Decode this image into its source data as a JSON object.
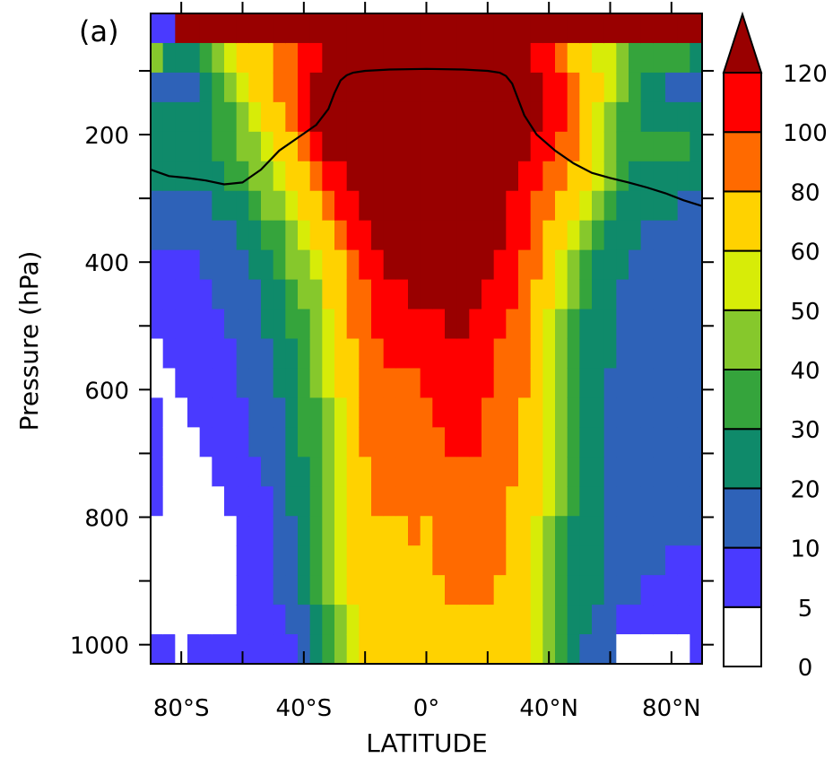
{
  "chart_data": {
    "type": "heatmap",
    "panel_label": "(a)",
    "xlabel": "LATITUDE",
    "ylabel": "Pressure (hPa)",
    "xlim": [
      -90,
      90
    ],
    "ylim": [
      1030,
      10
    ],
    "x_ticks": [
      {
        "value": -80,
        "label": "80°S"
      },
      {
        "value": -40,
        "label": "40°S"
      },
      {
        "value": 0,
        "label": "0°"
      },
      {
        "value": 40,
        "label": "40°N"
      },
      {
        "value": 80,
        "label": "80°N"
      }
    ],
    "x_minor_ticks": [
      -60,
      -20,
      20,
      60
    ],
    "y_ticks": [
      {
        "value": 200,
        "label": "200"
      },
      {
        "value": 400,
        "label": "400"
      },
      {
        "value": 600,
        "label": "600"
      },
      {
        "value": 800,
        "label": "800"
      },
      {
        "value": 1000,
        "label": "1000"
      }
    ],
    "y_minor_ticks": [
      100,
      300,
      500,
      700,
      900
    ],
    "colorbar": {
      "levels": [
        0,
        5,
        10,
        20,
        30,
        40,
        50,
        60,
        80,
        100,
        120
      ],
      "labels": [
        "0",
        "5",
        "10",
        "20",
        "30",
        "40",
        "50",
        "60",
        "80",
        "100",
        "120"
      ],
      "colors": [
        "#ffffff",
        "#4a3aff",
        "#2e62b8",
        "#0f8a6a",
        "#35a43c",
        "#86c82c",
        "#d7ec08",
        "#ffd200",
        "#ff6a00",
        "#ff0000",
        "#990000"
      ],
      "extend": "max"
    },
    "columns": [
      {
        "lat": -88,
        "p": [
          5,
          40,
          10,
          20,
          20,
          20,
          10,
          10,
          5,
          5,
          5,
          0,
          0,
          5,
          5,
          5,
          5,
          0,
          0,
          0,
          0,
          5
        ]
      },
      {
        "lat": -84,
        "p": [
          5,
          20,
          10,
          20,
          20,
          20,
          10,
          10,
          5,
          5,
          5,
          5,
          0,
          0,
          0,
          0,
          0,
          0,
          0,
          0,
          0,
          5
        ]
      },
      {
        "lat": -80,
        "p": [
          120,
          20,
          10,
          20,
          20,
          20,
          10,
          10,
          5,
          5,
          5,
          5,
          5,
          0,
          0,
          0,
          0,
          0,
          0,
          0,
          0,
          0
        ]
      },
      {
        "lat": -76,
        "p": [
          120,
          20,
          10,
          20,
          20,
          20,
          10,
          10,
          5,
          5,
          5,
          5,
          5,
          5,
          0,
          0,
          0,
          0,
          0,
          0,
          0,
          5
        ]
      },
      {
        "lat": -72,
        "p": [
          120,
          30,
          20,
          20,
          20,
          20,
          10,
          10,
          10,
          5,
          5,
          5,
          5,
          5,
          5,
          0,
          0,
          0,
          0,
          0,
          0,
          5
        ]
      },
      {
        "lat": -68,
        "p": [
          120,
          40,
          30,
          30,
          30,
          20,
          20,
          10,
          10,
          10,
          5,
          5,
          5,
          5,
          5,
          5,
          0,
          0,
          0,
          0,
          0,
          5
        ]
      },
      {
        "lat": -64,
        "p": [
          120,
          50,
          40,
          30,
          30,
          30,
          20,
          10,
          10,
          10,
          10,
          5,
          5,
          5,
          5,
          5,
          5,
          0,
          0,
          0,
          0,
          5
        ]
      },
      {
        "lat": -60,
        "p": [
          120,
          60,
          50,
          40,
          40,
          30,
          20,
          20,
          10,
          10,
          10,
          10,
          10,
          5,
          5,
          5,
          5,
          5,
          5,
          5,
          5,
          5
        ]
      },
      {
        "lat": -56,
        "p": [
          120,
          60,
          60,
          50,
          40,
          40,
          30,
          20,
          20,
          10,
          10,
          10,
          10,
          10,
          10,
          5,
          5,
          5,
          5,
          5,
          5,
          5
        ]
      },
      {
        "lat": -52,
        "p": [
          120,
          60,
          60,
          60,
          50,
          40,
          40,
          30,
          20,
          20,
          20,
          10,
          10,
          10,
          10,
          10,
          5,
          5,
          5,
          5,
          5,
          5
        ]
      },
      {
        "lat": -48,
        "p": [
          120,
          80,
          80,
          60,
          60,
          50,
          40,
          30,
          30,
          20,
          20,
          20,
          20,
          10,
          10,
          10,
          10,
          10,
          10,
          10,
          5,
          5
        ]
      },
      {
        "lat": -44,
        "p": [
          120,
          80,
          80,
          80,
          60,
          60,
          50,
          40,
          40,
          30,
          30,
          20,
          20,
          20,
          20,
          20,
          20,
          10,
          10,
          10,
          10,
          5
        ]
      },
      {
        "lat": -40,
        "p": [
          120,
          100,
          100,
          100,
          80,
          60,
          60,
          50,
          40,
          40,
          30,
          30,
          30,
          30,
          30,
          20,
          20,
          20,
          20,
          20,
          10,
          10
        ]
      },
      {
        "lat": -36,
        "p": [
          120,
          100,
          120,
          120,
          100,
          80,
          60,
          60,
          50,
          40,
          40,
          40,
          40,
          30,
          30,
          30,
          30,
          30,
          30,
          30,
          20,
          20
        ]
      },
      {
        "lat": -32,
        "p": [
          120,
          120,
          120,
          120,
          120,
          100,
          80,
          60,
          60,
          60,
          50,
          50,
          50,
          40,
          40,
          40,
          40,
          40,
          40,
          40,
          30,
          30
        ]
      },
      {
        "lat": -28,
        "p": [
          120,
          120,
          120,
          120,
          120,
          100,
          100,
          80,
          60,
          60,
          60,
          60,
          60,
          50,
          50,
          50,
          50,
          50,
          50,
          50,
          40,
          40
        ]
      },
      {
        "lat": -24,
        "p": [
          120,
          120,
          120,
          120,
          120,
          120,
          100,
          100,
          80,
          80,
          80,
          60,
          60,
          60,
          60,
          60,
          60,
          60,
          60,
          60,
          50,
          50
        ]
      },
      {
        "lat": -20,
        "p": [
          120,
          120,
          120,
          120,
          120,
          120,
          120,
          100,
          100,
          80,
          80,
          80,
          80,
          80,
          80,
          60,
          60,
          60,
          60,
          60,
          60,
          60
        ]
      },
      {
        "lat": -16,
        "p": [
          120,
          120,
          120,
          120,
          120,
          120,
          120,
          120,
          100,
          100,
          100,
          80,
          80,
          80,
          80,
          80,
          80,
          60,
          60,
          60,
          60,
          60
        ]
      },
      {
        "lat": -12,
        "p": [
          120,
          120,
          120,
          120,
          120,
          120,
          120,
          120,
          120,
          100,
          100,
          100,
          80,
          80,
          80,
          80,
          80,
          60,
          60,
          60,
          60,
          60
        ]
      },
      {
        "lat": -8,
        "p": [
          120,
          120,
          120,
          120,
          120,
          120,
          120,
          120,
          120,
          100,
          100,
          100,
          80,
          80,
          80,
          80,
          80,
          60,
          60,
          60,
          60,
          60
        ]
      },
      {
        "lat": -4,
        "p": [
          120,
          120,
          120,
          120,
          120,
          120,
          120,
          120,
          120,
          120,
          100,
          100,
          80,
          80,
          80,
          80,
          80,
          80,
          60,
          60,
          60,
          60
        ]
      },
      {
        "lat": 0,
        "p": [
          120,
          120,
          120,
          120,
          120,
          120,
          120,
          120,
          120,
          120,
          100,
          100,
          100,
          80,
          80,
          80,
          80,
          60,
          60,
          60,
          60,
          60
        ]
      },
      {
        "lat": 4,
        "p": [
          120,
          120,
          120,
          120,
          120,
          120,
          120,
          120,
          120,
          120,
          100,
          100,
          100,
          100,
          80,
          80,
          80,
          80,
          80,
          60,
          60,
          60
        ]
      },
      {
        "lat": 8,
        "p": [
          120,
          120,
          120,
          120,
          120,
          120,
          120,
          120,
          120,
          120,
          120,
          100,
          100,
          100,
          100,
          80,
          80,
          80,
          80,
          80,
          60,
          60
        ]
      },
      {
        "lat": 12,
        "p": [
          120,
          120,
          120,
          120,
          120,
          120,
          120,
          120,
          120,
          120,
          120,
          100,
          100,
          100,
          100,
          80,
          80,
          80,
          80,
          80,
          60,
          60
        ]
      },
      {
        "lat": 16,
        "p": [
          120,
          120,
          120,
          120,
          120,
          120,
          120,
          120,
          120,
          120,
          100,
          100,
          100,
          100,
          100,
          80,
          80,
          80,
          80,
          80,
          60,
          60
        ]
      },
      {
        "lat": 20,
        "p": [
          120,
          120,
          120,
          120,
          120,
          120,
          120,
          120,
          120,
          100,
          100,
          100,
          100,
          80,
          80,
          80,
          80,
          80,
          80,
          80,
          60,
          60
        ]
      },
      {
        "lat": 24,
        "p": [
          120,
          120,
          120,
          120,
          120,
          120,
          120,
          120,
          100,
          100,
          100,
          80,
          80,
          80,
          80,
          80,
          80,
          80,
          80,
          60,
          60,
          60
        ]
      },
      {
        "lat": 28,
        "p": [
          120,
          120,
          120,
          120,
          120,
          120,
          100,
          100,
          100,
          100,
          80,
          80,
          80,
          80,
          80,
          80,
          60,
          60,
          60,
          60,
          60,
          60
        ]
      },
      {
        "lat": 32,
        "p": [
          120,
          120,
          120,
          120,
          120,
          100,
          100,
          100,
          80,
          80,
          80,
          80,
          80,
          60,
          60,
          60,
          60,
          60,
          60,
          60,
          60,
          60
        ]
      },
      {
        "lat": 36,
        "p": [
          120,
          100,
          120,
          120,
          100,
          100,
          80,
          80,
          80,
          60,
          60,
          60,
          60,
          60,
          60,
          60,
          60,
          50,
          50,
          50,
          50,
          50
        ]
      },
      {
        "lat": 40,
        "p": [
          120,
          100,
          100,
          100,
          100,
          80,
          80,
          60,
          60,
          60,
          50,
          50,
          50,
          50,
          50,
          50,
          50,
          40,
          40,
          40,
          40,
          40
        ]
      },
      {
        "lat": 44,
        "p": [
          120,
          80,
          100,
          100,
          80,
          80,
          60,
          60,
          50,
          50,
          40,
          40,
          40,
          40,
          40,
          40,
          40,
          30,
          30,
          30,
          30,
          30
        ]
      },
      {
        "lat": 48,
        "p": [
          120,
          60,
          80,
          80,
          80,
          60,
          60,
          50,
          40,
          40,
          30,
          30,
          30,
          30,
          30,
          30,
          30,
          20,
          20,
          20,
          20,
          20
        ]
      },
      {
        "lat": 52,
        "p": [
          120,
          60,
          60,
          60,
          60,
          60,
          50,
          40,
          30,
          30,
          20,
          20,
          20,
          20,
          20,
          20,
          20,
          20,
          20,
          20,
          20,
          10
        ]
      },
      {
        "lat": 56,
        "p": [
          120,
          50,
          60,
          50,
          50,
          50,
          40,
          30,
          20,
          20,
          20,
          20,
          20,
          20,
          20,
          20,
          20,
          20,
          20,
          20,
          10,
          10
        ]
      },
      {
        "lat": 60,
        "p": [
          120,
          50,
          50,
          40,
          40,
          40,
          30,
          20,
          20,
          20,
          20,
          20,
          10,
          10,
          10,
          10,
          10,
          10,
          10,
          10,
          10,
          10
        ]
      },
      {
        "lat": 64,
        "p": [
          120,
          40,
          40,
          30,
          30,
          30,
          20,
          20,
          20,
          10,
          10,
          10,
          10,
          10,
          10,
          10,
          10,
          10,
          10,
          10,
          5,
          0
        ]
      },
      {
        "lat": 68,
        "p": [
          120,
          30,
          30,
          30,
          30,
          20,
          20,
          20,
          10,
          10,
          10,
          10,
          10,
          10,
          10,
          10,
          10,
          10,
          10,
          10,
          5,
          0
        ]
      },
      {
        "lat": 72,
        "p": [
          120,
          30,
          20,
          20,
          30,
          20,
          20,
          10,
          10,
          10,
          10,
          10,
          10,
          10,
          10,
          10,
          10,
          10,
          10,
          5,
          5,
          0
        ]
      },
      {
        "lat": 76,
        "p": [
          120,
          30,
          20,
          20,
          30,
          20,
          20,
          10,
          10,
          10,
          10,
          10,
          10,
          10,
          10,
          10,
          10,
          10,
          10,
          5,
          5,
          0
        ]
      },
      {
        "lat": 80,
        "p": [
          120,
          30,
          10,
          20,
          30,
          20,
          20,
          10,
          10,
          10,
          10,
          10,
          10,
          10,
          10,
          10,
          10,
          10,
          5,
          5,
          5,
          0
        ]
      },
      {
        "lat": 84,
        "p": [
          120,
          30,
          10,
          20,
          30,
          20,
          10,
          10,
          10,
          10,
          10,
          10,
          10,
          10,
          10,
          10,
          10,
          10,
          5,
          5,
          5,
          0
        ]
      },
      {
        "lat": 88,
        "p": [
          120,
          20,
          10,
          20,
          20,
          20,
          10,
          10,
          10,
          10,
          10,
          10,
          10,
          10,
          10,
          10,
          10,
          10,
          5,
          5,
          5,
          5
        ]
      }
    ],
    "tropopause_line": {
      "lat": [
        -90,
        -84,
        -78,
        -72,
        -66,
        -60,
        -54,
        -48,
        -42,
        -36,
        -32,
        -30,
        -28,
        -26,
        -24,
        -20,
        -12,
        0,
        12,
        20,
        24,
        26,
        28,
        30,
        32,
        36,
        42,
        48,
        54,
        60,
        66,
        72,
        78,
        84,
        90
      ],
      "pressure": [
        255,
        265,
        268,
        272,
        278,
        275,
        255,
        225,
        205,
        185,
        160,
        135,
        115,
        107,
        103,
        100,
        98,
        97,
        98,
        100,
        103,
        108,
        120,
        145,
        170,
        200,
        225,
        245,
        260,
        268,
        275,
        283,
        292,
        303,
        312
      ]
    }
  }
}
